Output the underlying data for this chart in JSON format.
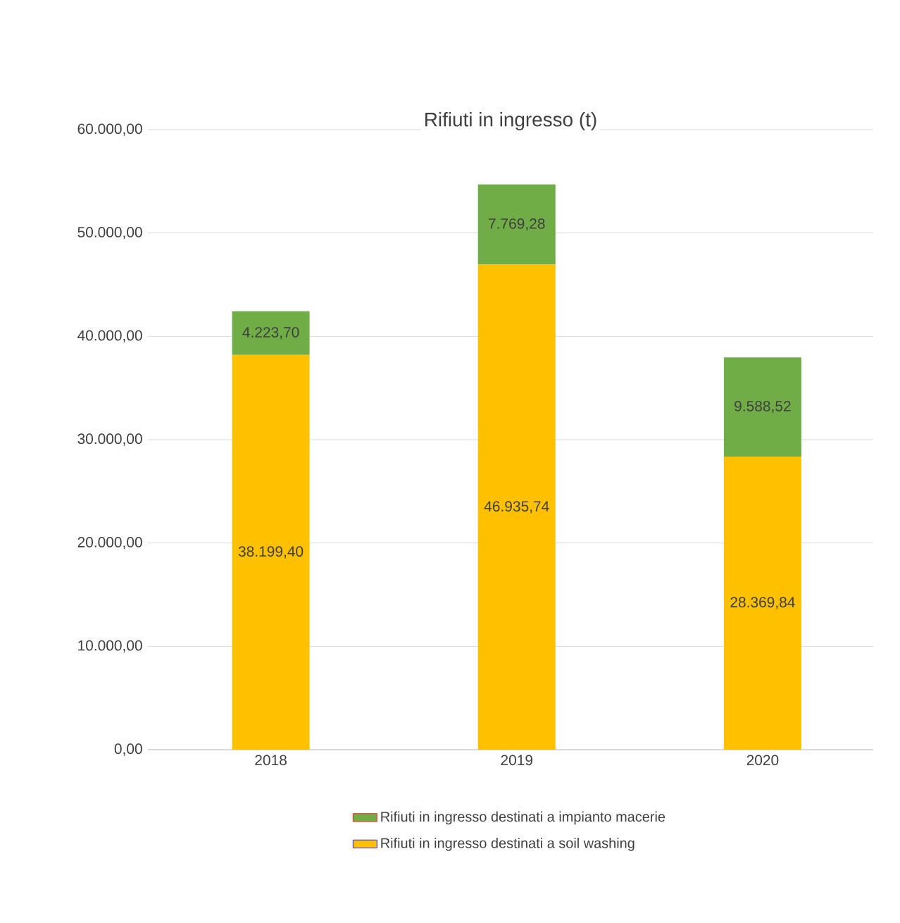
{
  "chart_data": {
    "type": "bar",
    "title": "Rifiuti in ingresso (t)",
    "stacked": true,
    "categories": [
      "2018",
      "2019",
      "2020"
    ],
    "series": [
      {
        "name": "Rifiuti in ingresso destinati a soil washing",
        "color": "#ffc000",
        "values": [
          38199.4,
          46935.74,
          28369.84
        ],
        "value_labels": [
          "38.199,40",
          "46.935,74",
          "28.369,84"
        ]
      },
      {
        "name": "Rifiuti in ingresso destinati a impianto macerie",
        "color": "#70ad47",
        "values": [
          4223.7,
          7769.28,
          9588.52
        ],
        "value_labels": [
          "4.223,70",
          "7.769,28",
          "9.588,52"
        ]
      }
    ],
    "ylim": [
      0,
      60000
    ],
    "yticks": [
      {
        "value": 0,
        "label": "0,00"
      },
      {
        "value": 10000,
        "label": "10.000,00"
      },
      {
        "value": 20000,
        "label": "20.000,00"
      },
      {
        "value": 30000,
        "label": "30.000,00"
      },
      {
        "value": 40000,
        "label": "40.000,00"
      },
      {
        "value": 50000,
        "label": "50.000,00"
      },
      {
        "value": 60000,
        "label": "60.000,00"
      }
    ],
    "grid": "y",
    "legend": "bottom"
  }
}
